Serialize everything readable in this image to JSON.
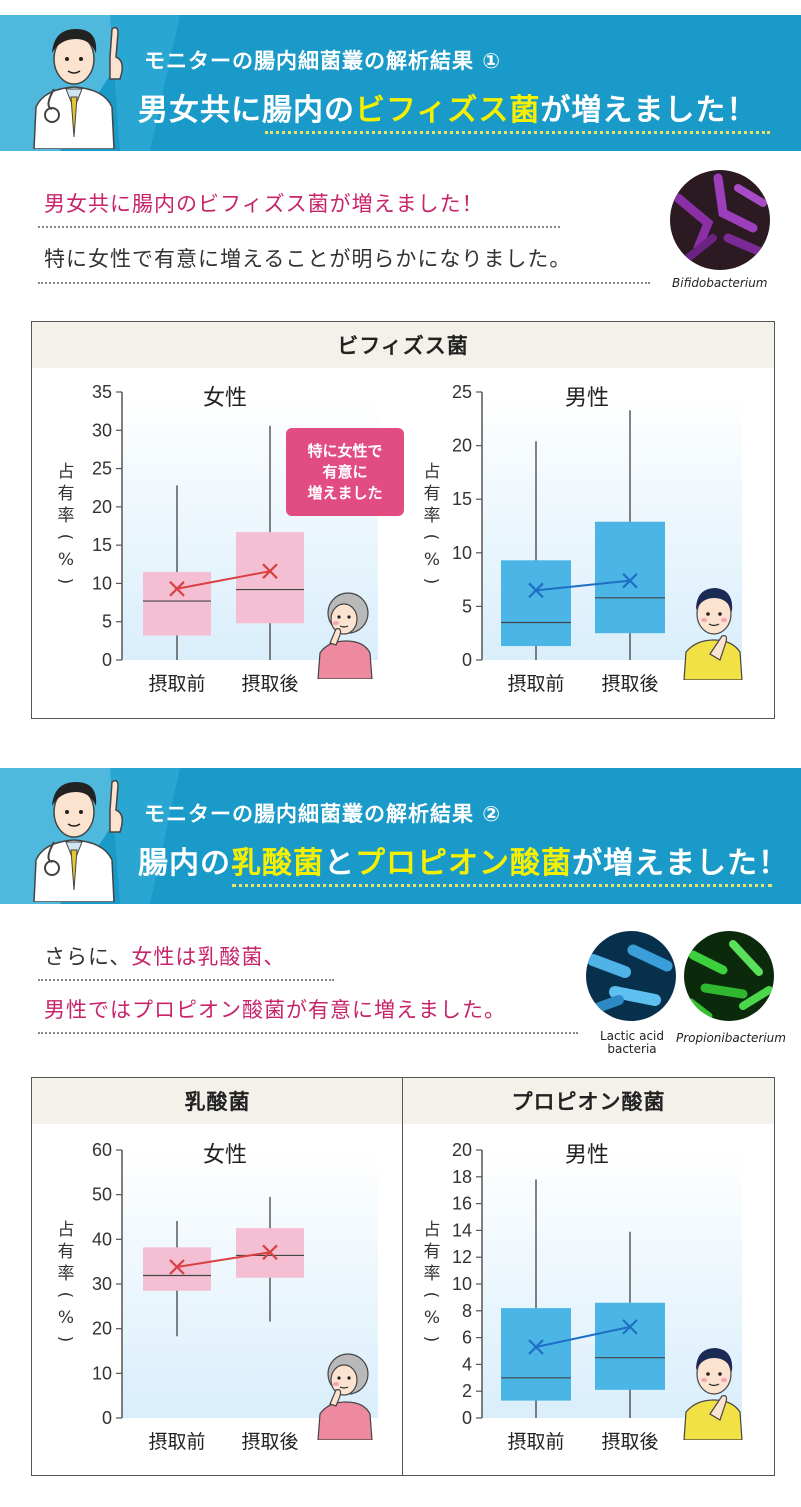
{
  "sections": [
    {
      "subtitle": "モニターの腸内細菌叢の解析結果 ①",
      "headline_pre": "男女共に腸内の",
      "headline_hl": "ビフィズス菌",
      "headline_post": "が増えました！",
      "lead_line1": "男女共に腸内のビフィズス菌が増えました！",
      "lead_line2": "特に女性で有意に増えることが明らかになりました。",
      "bacteria_labels": [
        "Bifidobacterium"
      ]
    },
    {
      "subtitle": "モニターの腸内細菌叢の解析結果 ②",
      "headline_pre": "腸内の",
      "headline_hl": "乳酸菌",
      "headline_mid": "と",
      "headline_hl2": "プロピオン酸菌",
      "headline_post": "が増えました！",
      "lead_line1_pre": "さらに、",
      "lead_line1_pink": "女性は乳酸菌、",
      "lead_line2": "男性ではプロピオン酸菌が有意に増えました。",
      "bacteria_labels": [
        "Lactic acid\nbacteria",
        "Propionibacterium"
      ]
    }
  ],
  "panels": [
    {
      "title": "ビフィズス菌"
    },
    {
      "title": "乳酸菌"
    },
    {
      "title": "プロピオン酸菌"
    }
  ],
  "callout": "特に女性で\n有意に\n増えました",
  "colors": {
    "banner": "#1a9ac8",
    "highlight": "#f5f000",
    "pink": "#c8246c",
    "female_box": "#f4bfd3",
    "male_box": "#4bb5e6",
    "female_line": "#d94040",
    "male_line": "#1f6fc4"
  },
  "chart_data": [
    {
      "type": "box",
      "panel": "ビフィズス菌",
      "title": "女性",
      "ylabel": "占有率（%）",
      "categories": [
        "摂取前",
        "摂取後"
      ],
      "ylim": [
        0,
        35
      ],
      "yticks": [
        0,
        5,
        10,
        15,
        20,
        25,
        30,
        35
      ],
      "boxes": [
        {
          "min": 0,
          "q1": 3.2,
          "median": 7.7,
          "q3": 11.5,
          "max": 22.8,
          "mean": 9.3
        },
        {
          "min": 0,
          "q1": 4.8,
          "median": 9.2,
          "q3": 16.7,
          "max": 30.6,
          "mean": 11.6
        }
      ],
      "color": "#f4bfd3",
      "mean_color": "#d94040"
    },
    {
      "type": "box",
      "panel": "ビフィズス菌",
      "title": "男性",
      "ylabel": "占有率（%）",
      "categories": [
        "摂取前",
        "摂取後"
      ],
      "ylim": [
        0,
        25
      ],
      "yticks": [
        0,
        5,
        10,
        15,
        20,
        25
      ],
      "boxes": [
        {
          "min": 0,
          "q1": 1.3,
          "median": 3.5,
          "q3": 9.3,
          "max": 20.4,
          "mean": 6.5
        },
        {
          "min": 0,
          "q1": 2.5,
          "median": 5.8,
          "q3": 12.9,
          "max": 23.3,
          "mean": 7.4
        }
      ],
      "color": "#4bb5e6",
      "mean_color": "#1f6fc4"
    },
    {
      "type": "box",
      "panel": "乳酸菌",
      "title": "女性",
      "ylabel": "占有率（%）",
      "categories": [
        "摂取前",
        "摂取後"
      ],
      "ylim": [
        0,
        60
      ],
      "yticks": [
        0,
        10,
        20,
        30,
        40,
        50,
        60
      ],
      "boxes": [
        {
          "min": 18.3,
          "q1": 28.5,
          "median": 31.9,
          "q3": 38.2,
          "max": 44.1,
          "mean": 33.8
        },
        {
          "min": 21.6,
          "q1": 31.4,
          "median": 36.4,
          "q3": 42.5,
          "max": 49.5,
          "mean": 37.1
        }
      ],
      "color": "#f4bfd3",
      "mean_color": "#d94040"
    },
    {
      "type": "box",
      "panel": "プロピオン酸菌",
      "title": "男性",
      "ylabel": "占有率（%）",
      "categories": [
        "摂取前",
        "摂取後"
      ],
      "ylim": [
        0,
        20
      ],
      "yticks": [
        0,
        2,
        4,
        6,
        8,
        10,
        12,
        14,
        16,
        18,
        20
      ],
      "boxes": [
        {
          "min": 0,
          "q1": 1.3,
          "median": 3.0,
          "q3": 8.2,
          "max": 17.8,
          "mean": 5.3
        },
        {
          "min": 0,
          "q1": 2.1,
          "median": 4.5,
          "q3": 8.6,
          "max": 13.9,
          "mean": 6.8
        }
      ],
      "color": "#4bb5e6",
      "mean_color": "#1f6fc4"
    }
  ]
}
